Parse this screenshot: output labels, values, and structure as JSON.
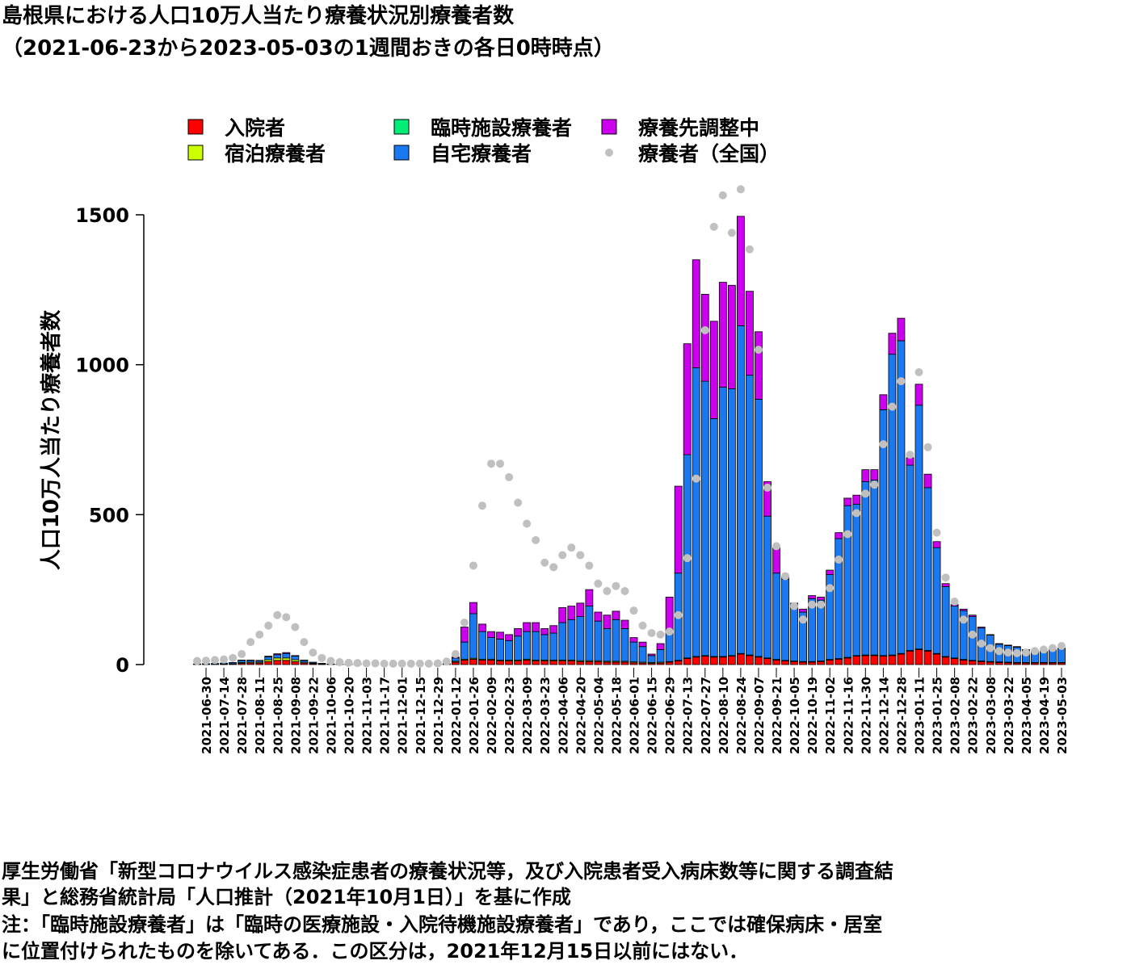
{
  "chart_data": {
    "type": "stacked-bar",
    "title": "島根県における人口10万人当たり療養状況別療養者数",
    "subtitle": "（2021-06-23から2023-05-03の1週間おきの各日0時時点）",
    "y_label": "人口10万人当たり療養者数",
    "ylim": [
      0,
      1500
    ],
    "yticks": [
      0,
      500,
      1000,
      1500
    ],
    "categories": [
      null,
      "2021-06-30",
      null,
      "2021-07-14",
      null,
      "2021-07-28",
      null,
      "2021-08-11",
      null,
      "2021-08-25",
      null,
      "2021-09-08",
      null,
      "2021-09-22",
      null,
      "2021-10-06",
      null,
      "2021-10-20",
      null,
      "2021-11-03",
      null,
      "2021-11-17",
      null,
      "2021-12-01",
      null,
      "2021-12-15",
      null,
      "2021-12-29",
      null,
      "2022-01-12",
      null,
      "2022-01-26",
      null,
      "2022-02-09",
      null,
      "2022-02-23",
      null,
      "2022-03-09",
      null,
      "2022-03-23",
      null,
      "2022-04-06",
      null,
      "2022-04-20",
      null,
      "2022-05-04",
      null,
      "2022-05-18",
      null,
      "2022-06-01",
      null,
      "2022-06-15",
      null,
      "2022-06-29",
      null,
      "2022-07-13",
      null,
      "2022-07-27",
      null,
      "2022-08-10",
      null,
      "2022-08-24",
      null,
      "2022-09-07",
      null,
      "2022-09-21",
      null,
      "2022-10-05",
      null,
      "2022-10-19",
      null,
      "2022-11-02",
      null,
      "2022-11-16",
      null,
      "2022-11-30",
      null,
      "2022-12-14",
      null,
      "2022-12-28",
      null,
      "2023-01-11",
      null,
      "2023-01-25",
      null,
      "2023-02-08",
      null,
      "2023-02-22",
      null,
      "2023-03-08",
      null,
      "2023-03-22",
      null,
      "2023-04-05",
      null,
      "2023-04-19",
      null,
      "2023-05-03"
    ],
    "series": [
      {
        "name": "入院者",
        "color": "#ff0000",
        "values": [
          1,
          1,
          1,
          1,
          2,
          4,
          5,
          5,
          10,
          14,
          14,
          10,
          5,
          3,
          1,
          1,
          0,
          0,
          0,
          0,
          0,
          0,
          0,
          0,
          0,
          0,
          0,
          0,
          0,
          8,
          15,
          18,
          15,
          15,
          12,
          12,
          12,
          15,
          12,
          12,
          12,
          12,
          12,
          10,
          10,
          10,
          8,
          8,
          8,
          6,
          5,
          4,
          5,
          8,
          12,
          20,
          25,
          28,
          25,
          25,
          28,
          35,
          30,
          25,
          20,
          15,
          12,
          10,
          8,
          8,
          10,
          15,
          18,
          22,
          28,
          30,
          30,
          28,
          30,
          35,
          45,
          50,
          45,
          35,
          25,
          20,
          15,
          12,
          10,
          8,
          7,
          6,
          5,
          5,
          5,
          5,
          5,
          5
        ]
      },
      {
        "name": "宿泊療養者",
        "color": "#ccff00",
        "values": [
          0,
          0,
          0,
          1,
          1,
          3,
          3,
          3,
          6,
          8,
          8,
          6,
          3,
          2,
          1,
          0,
          0,
          0,
          0,
          0,
          0,
          0,
          0,
          0,
          0,
          0,
          0,
          0,
          0,
          3,
          3,
          3,
          3,
          3,
          3,
          3,
          3,
          3,
          3,
          3,
          3,
          3,
          3,
          3,
          3,
          3,
          3,
          3,
          3,
          3,
          3,
          3,
          3,
          2,
          2,
          2,
          2,
          2,
          2,
          2,
          2,
          2,
          2,
          2,
          2,
          2,
          2,
          2,
          2,
          2,
          2,
          2,
          2,
          2,
          2,
          2,
          2,
          2,
          2,
          2,
          2,
          2,
          2,
          2,
          2,
          2,
          2,
          2,
          2,
          2,
          2,
          2,
          2,
          2,
          2,
          2,
          2,
          2
        ]
      },
      {
        "name": "臨時施設療養者",
        "color": "#00ee77",
        "values": [
          null,
          null,
          null,
          null,
          null,
          null,
          null,
          null,
          null,
          null,
          null,
          null,
          null,
          null,
          null,
          null,
          null,
          null,
          null,
          null,
          null,
          null,
          null,
          null,
          null,
          null,
          0,
          0,
          0,
          0,
          0,
          0,
          0,
          0,
          0,
          0,
          0,
          0,
          0,
          0,
          0,
          0,
          0,
          0,
          0,
          0,
          0,
          0,
          0,
          0,
          0,
          0,
          0,
          0,
          0,
          0,
          0,
          0,
          0,
          0,
          0,
          0,
          0,
          0,
          0,
          0,
          0,
          0,
          0,
          0,
          0,
          0,
          0,
          0,
          0,
          0,
          0,
          0,
          0,
          0,
          0,
          0,
          0,
          0,
          0,
          0,
          0,
          0,
          0,
          0,
          0,
          0,
          0,
          0,
          0,
          0,
          0,
          0
        ]
      },
      {
        "name": "自宅療養者",
        "color": "#1a78f0",
        "values": [
          1,
          2,
          3,
          3,
          4,
          7,
          6,
          5,
          10,
          11,
          15,
          12,
          6,
          3,
          2,
          1,
          1,
          1,
          1,
          0,
          0,
          0,
          0,
          0,
          0,
          0,
          0,
          1,
          3,
          11,
          57,
          149,
          92,
          72,
          70,
          65,
          80,
          92,
          95,
          85,
          90,
          125,
          135,
          147,
          182,
          132,
          109,
          139,
          109,
          66,
          52,
          23,
          42,
          105,
          291,
          678,
          963,
          915,
          793,
          898,
          890,
          1093,
          933,
          858,
          473,
          288,
          271,
          183,
          165,
          210,
          203,
          283,
          400,
          506,
          505,
          578,
          583,
          820,
          1003,
          1043,
          618,
          813,
          543,
          353,
          233,
          173,
          163,
          146,
          110,
          88,
          59,
          55,
          51,
          41,
          36,
          36,
          41,
          46
        ]
      },
      {
        "name": "療養先調整中",
        "color": "#cc00ee",
        "values": [
          0,
          0,
          0,
          0,
          0,
          1,
          1,
          1,
          2,
          3,
          3,
          2,
          1,
          0,
          0,
          0,
          0,
          0,
          0,
          0,
          0,
          0,
          0,
          0,
          0,
          0,
          0,
          0,
          0,
          3,
          50,
          37,
          25,
          20,
          23,
          20,
          25,
          30,
          30,
          20,
          25,
          50,
          45,
          45,
          55,
          30,
          45,
          28,
          28,
          15,
          15,
          5,
          20,
          110,
          290,
          370,
          360,
          290,
          325,
          350,
          345,
          365,
          280,
          225,
          115,
          85,
          10,
          10,
          10,
          10,
          10,
          15,
          20,
          25,
          30,
          40,
          35,
          50,
          70,
          75,
          25,
          70,
          45,
          20,
          10,
          5,
          5,
          5,
          3,
          2,
          2,
          2,
          2,
          2,
          2,
          2,
          2,
          2
        ]
      },
      {
        "name": "療養者（全国）",
        "color": "#c0c0c0",
        "kind": "point",
        "values": [
          12,
          13,
          15,
          17,
          22,
          35,
          75,
          100,
          130,
          165,
          158,
          125,
          75,
          40,
          22,
          12,
          8,
          6,
          5,
          4,
          4,
          3,
          3,
          3,
          3,
          3,
          3,
          4,
          10,
          35,
          140,
          330,
          530,
          670,
          670,
          625,
          540,
          470,
          415,
          340,
          325,
          365,
          390,
          365,
          330,
          270,
          245,
          262,
          245,
          180,
          130,
          105,
          100,
          110,
          165,
          355,
          620,
          1115,
          1460,
          1565,
          1440,
          1585,
          1385,
          1050,
          590,
          395,
          295,
          195,
          150,
          200,
          200,
          255,
          350,
          435,
          505,
          570,
          600,
          735,
          860,
          945,
          700,
          975,
          725,
          440,
          290,
          210,
          150,
          100,
          70,
          55,
          45,
          40,
          38,
          40,
          45,
          50,
          55,
          62
        ]
      }
    ],
    "notes": [
      "厚生労働省「新型コロナウイルス感染症患者の療養状況等，及び入院患者受入病床数等に関する調査結",
      "果」と総務省統計局「人口推計（2021年10月1日）」を基に作成",
      "注：「臨時施設療養者」は「臨時の医療施設・入院待機施設療養者」であり，ここでは確保病床・居室",
      "に位置付けられたものを除いてある．この区分は，2021年12月15日以前にはない．"
    ]
  }
}
